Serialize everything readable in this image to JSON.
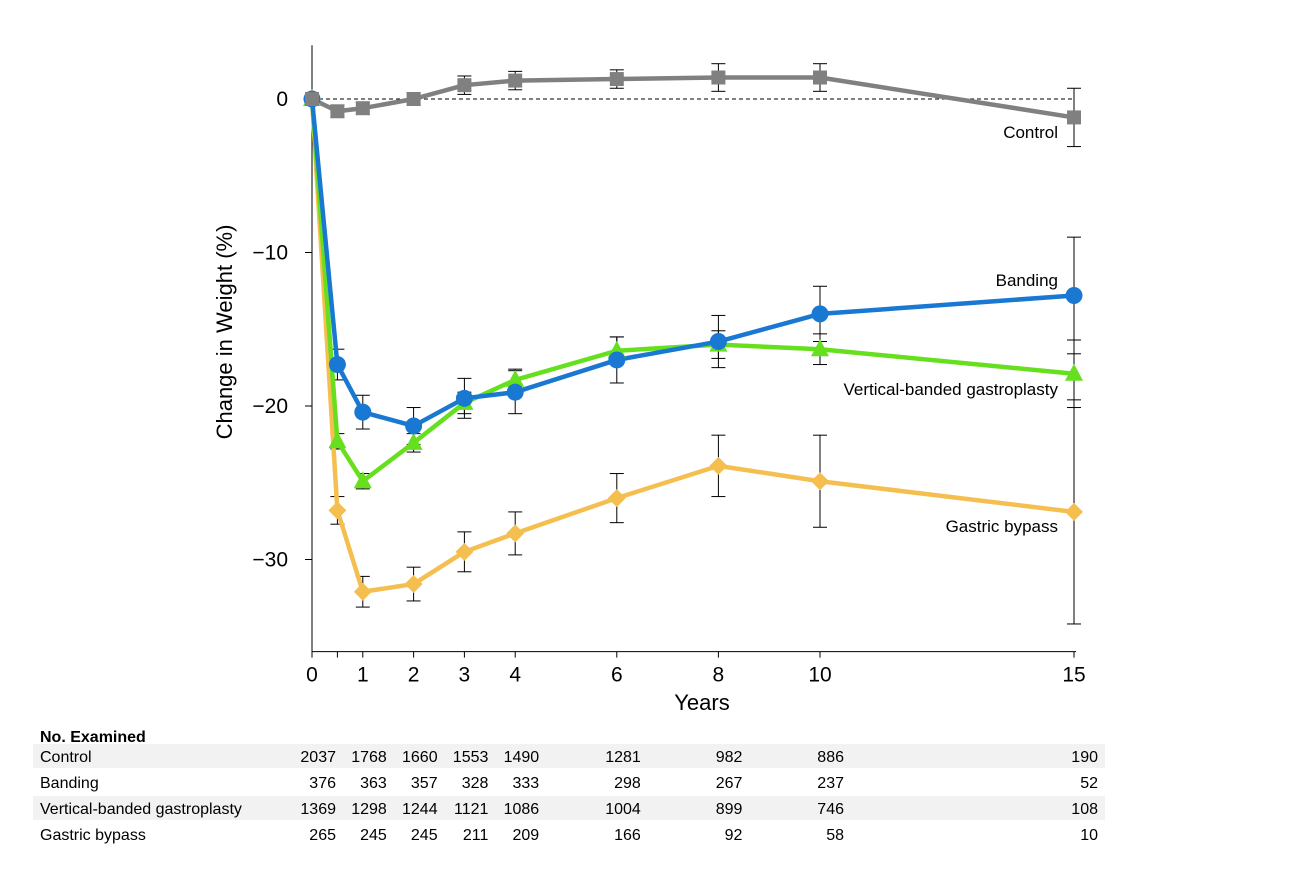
{
  "chart_data": {
    "type": "line",
    "title": "",
    "xlabel": "Years",
    "ylabel": "Change in Weight (%)",
    "xlim": [
      0,
      15
    ],
    "ylim": [
      -36,
      3.5
    ],
    "x_ticks": [
      0,
      1,
      2,
      3,
      4,
      6,
      8,
      10,
      15
    ],
    "x_minor_ticks": [
      0.5
    ],
    "y_ticks": [
      0,
      -10,
      -20,
      -30
    ],
    "y_tick_labels": [
      "0",
      "−10",
      "−20",
      "−30"
    ],
    "reference_line": {
      "y": 0,
      "style": "dashed"
    },
    "grid": false,
    "legend": "inline labels next to series",
    "series": [
      {
        "name": "Control",
        "color": "#808080",
        "marker": "square",
        "x": [
          0,
          0.5,
          1,
          2,
          3,
          4,
          6,
          8,
          10,
          15
        ],
        "y": [
          0,
          -0.8,
          -0.6,
          0,
          0.9,
          1.2,
          1.3,
          1.4,
          1.4,
          -1.2
        ],
        "err": [
          0.4,
          0.4,
          0.4,
          0.4,
          0.6,
          0.6,
          0.6,
          0.9,
          0.9,
          1.9
        ]
      },
      {
        "name": "Banding",
        "color": "#1878D2",
        "marker": "circle",
        "x": [
          0,
          0.5,
          1,
          2,
          3,
          4,
          6,
          8,
          10,
          15
        ],
        "y": [
          0,
          -17.3,
          -20.4,
          -21.3,
          -19.5,
          -19.1,
          -17.0,
          -15.8,
          -14.0,
          -12.8
        ],
        "err": [
          0.4,
          1.0,
          1.1,
          1.2,
          1.3,
          1.4,
          1.5,
          1.7,
          1.8,
          3.8
        ]
      },
      {
        "name": "Vertical-banded gastroplasty",
        "color": "#66E01E",
        "marker": "triangle",
        "x": [
          0,
          0.5,
          1,
          2,
          3,
          4,
          6,
          8,
          10,
          15
        ],
        "y": [
          0,
          -22.3,
          -24.9,
          -22.4,
          -19.8,
          -18.3,
          -16.4,
          -16.0,
          -16.3,
          -17.9
        ],
        "err": [
          0.4,
          0.5,
          0.5,
          0.6,
          0.7,
          0.7,
          0.9,
          0.9,
          1.0,
          2.2
        ]
      },
      {
        "name": "Gastric bypass",
        "color": "#F5BF50",
        "marker": "diamond",
        "x": [
          0,
          0.5,
          1,
          2,
          3,
          4,
          6,
          8,
          10,
          15
        ],
        "y": [
          0,
          -26.8,
          -32.1,
          -31.6,
          -29.5,
          -28.3,
          -26.0,
          -23.9,
          -24.9,
          -26.9
        ],
        "err": [
          0.4,
          0.9,
          1.0,
          1.1,
          1.3,
          1.4,
          1.6,
          2.0,
          3.0,
          7.3
        ]
      }
    ]
  },
  "table": {
    "header": "No. Examined",
    "years": [
      0,
      1,
      2,
      3,
      4,
      6,
      8,
      10,
      15
    ],
    "rows": [
      {
        "label": "Control",
        "shaded": true,
        "values": [
          "2037",
          "1768",
          "1660",
          "1553",
          "1490",
          "1281",
          "982",
          "886",
          "190"
        ]
      },
      {
        "label": "Banding",
        "shaded": false,
        "values": [
          "376",
          "363",
          "357",
          "328",
          "333",
          "298",
          "267",
          "237",
          "52"
        ]
      },
      {
        "label": "Vertical-banded gastroplasty",
        "shaded": true,
        "values": [
          "1369",
          "1298",
          "1244",
          "1121",
          "1086",
          "1004",
          "899",
          "746",
          "108"
        ]
      },
      {
        "label": "Gastric bypass",
        "shaded": false,
        "values": [
          "265",
          "245",
          "245",
          "211",
          "209",
          "166",
          "92",
          "58",
          "10"
        ]
      }
    ]
  }
}
